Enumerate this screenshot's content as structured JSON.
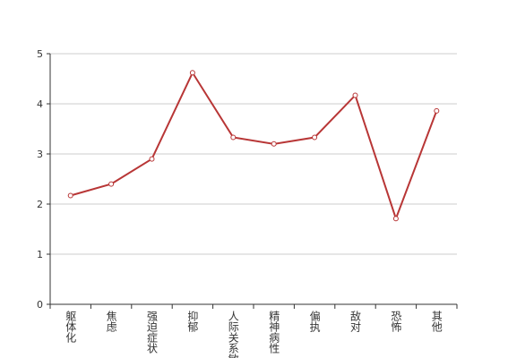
{
  "chart_data": {
    "type": "line",
    "categories": [
      "躯体化",
      "焦虑",
      "强迫症状",
      "抑郁",
      "人际关系敏感",
      "精神病性",
      "偏执",
      "敌对",
      "恐怖",
      "其他"
    ],
    "values": [
      2.17,
      2.4,
      2.9,
      4.62,
      3.33,
      3.2,
      3.33,
      4.17,
      1.71,
      3.86
    ],
    "color": "#b83636",
    "ylim": [
      0,
      5
    ],
    "yticks": [
      0,
      1,
      2,
      3,
      4,
      5
    ],
    "grid": true
  }
}
